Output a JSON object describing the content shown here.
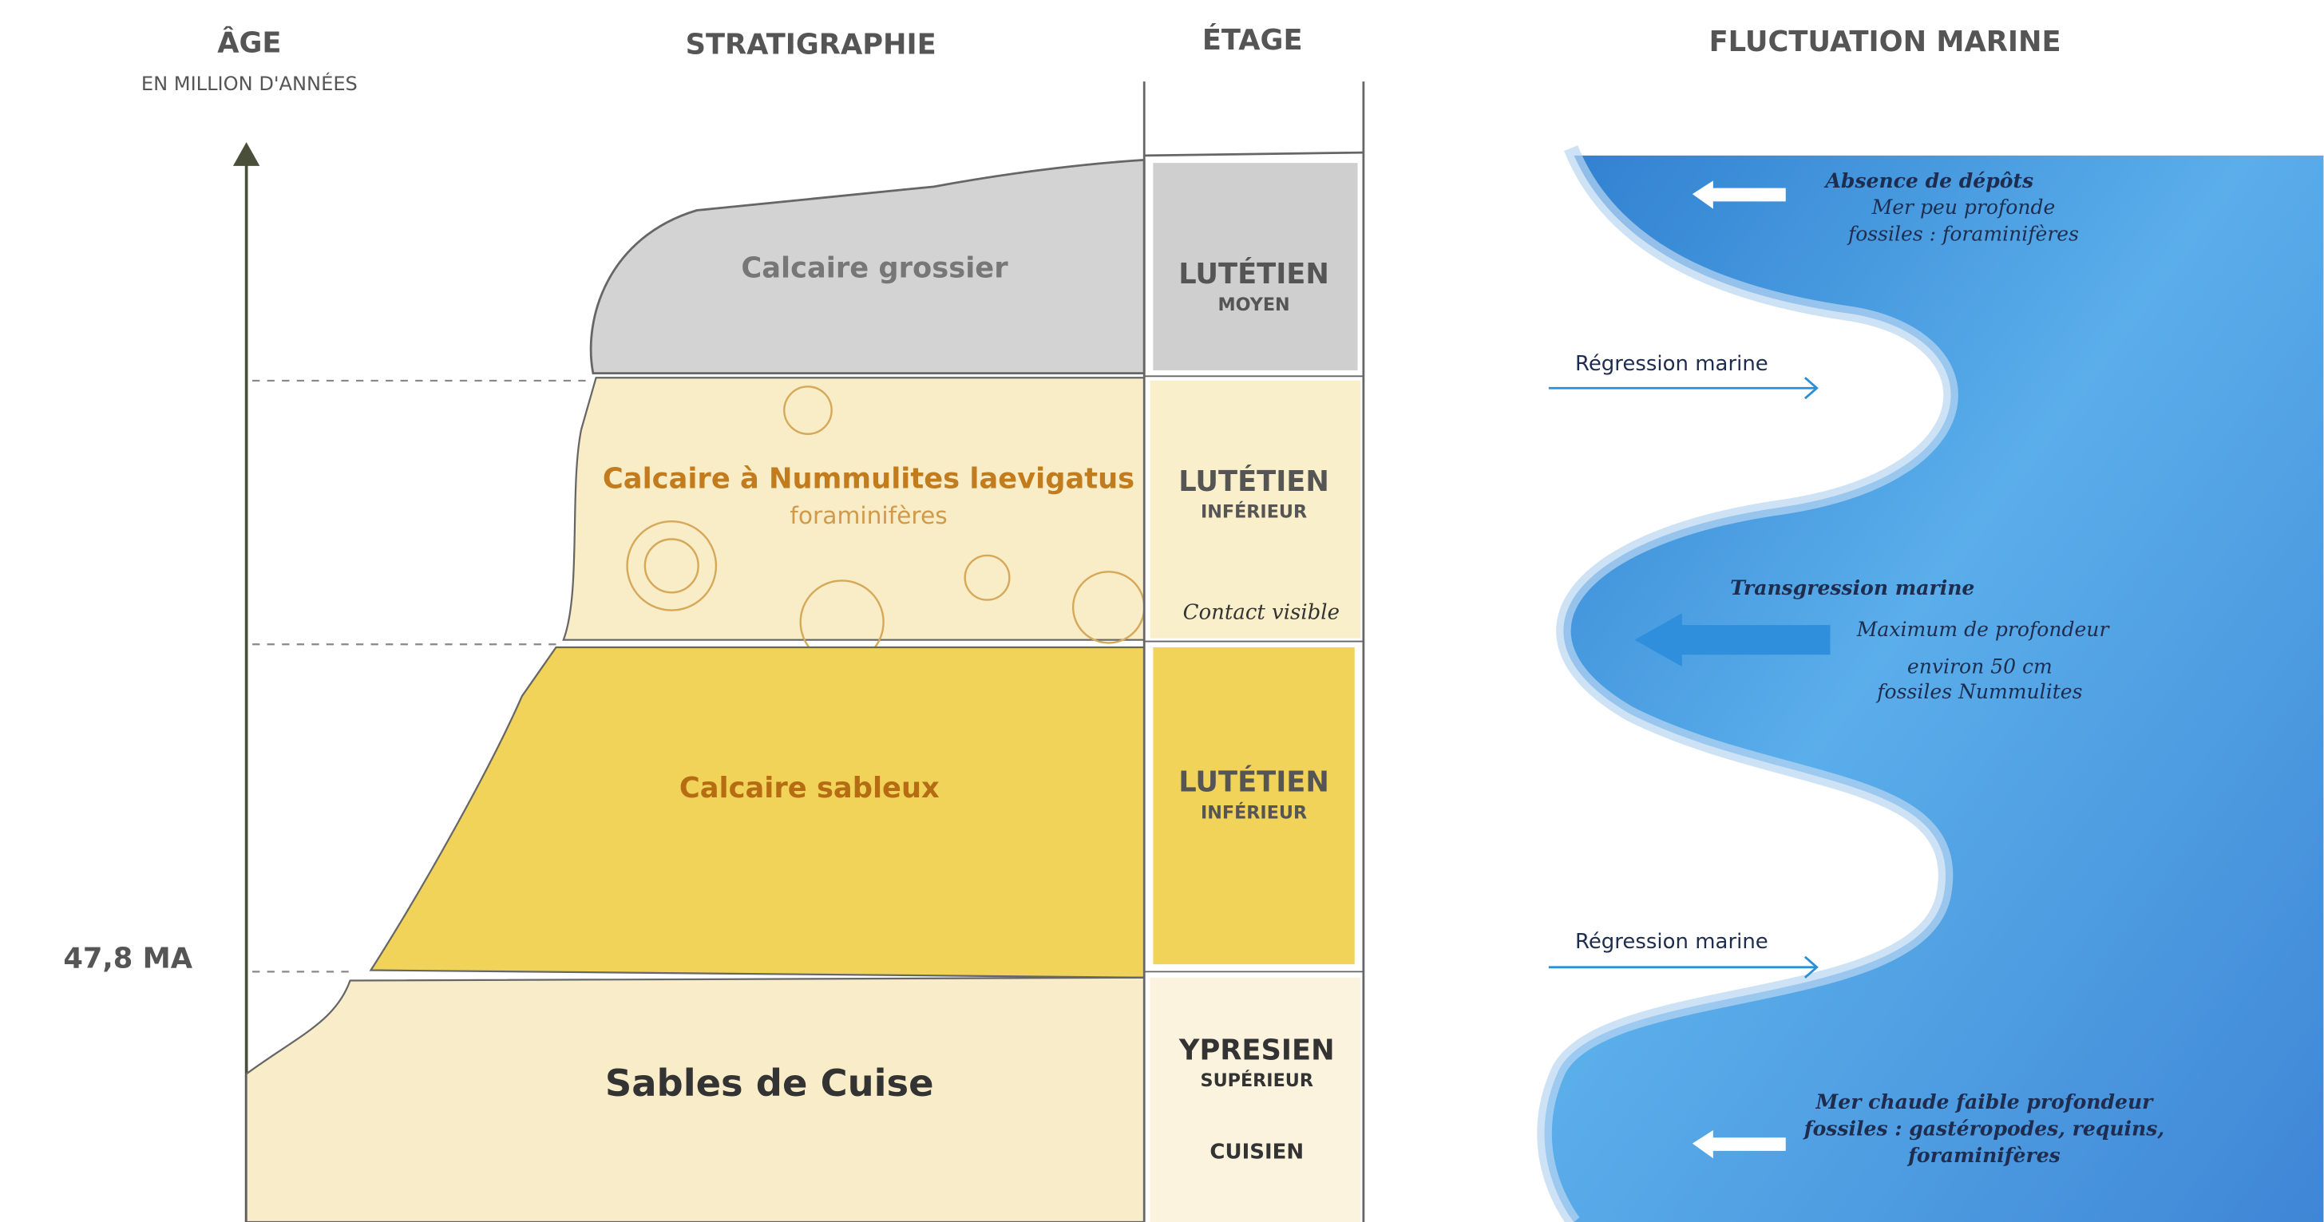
{
  "header": {
    "age": "ÂGE",
    "age_unit": "EN MILLION D'ANNÉES",
    "stratigraphy": "STRATIGRAPHIE",
    "stage": "ÉTAGE",
    "marine": "FLUCTUATION MARINE"
  },
  "age_marker": "47,8 MA",
  "layers": [
    {
      "name": "Calcaire grossier"
    },
    {
      "name": "Calcaire à Nummulites laevigatus",
      "subtitle": "foraminifères"
    },
    {
      "name": "Calcaire sableux"
    },
    {
      "name": "Sables de Cuise"
    }
  ],
  "stages": [
    {
      "name": "LUTÉTIEN",
      "sub": "MOYEN"
    },
    {
      "name": "LUTÉTIEN",
      "sub": "INFÉRIEUR",
      "note": "Contact visible"
    },
    {
      "name": "LUTÉTIEN",
      "sub": "INFÉRIEUR"
    },
    {
      "name": "YPRESIEN",
      "sub": "SUPÉRIEUR",
      "note": "CUISIEN"
    }
  ],
  "marine": [
    {
      "title": "Absence de dépôts",
      "lines": [
        "Mer peu profonde",
        "fossiles : foraminifères"
      ]
    },
    {
      "title": "Régression marine"
    },
    {
      "title": "Transgression marine",
      "lines": [
        "Maximum de profondeur",
        "environ 50 cm",
        "fossiles Nummulites"
      ]
    },
    {
      "title": "Régression marine"
    },
    {
      "lines": [
        "Mer chaude faible profondeur",
        "fossiles : gastéropodes, requins,",
        "foraminifères"
      ]
    }
  ]
}
